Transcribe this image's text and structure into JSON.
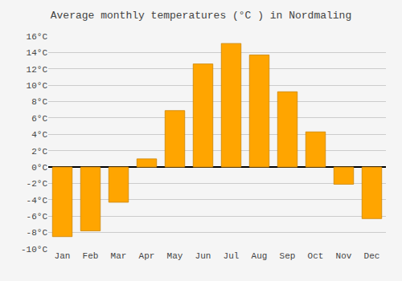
{
  "chart_data": {
    "type": "bar",
    "title": "Average monthly temperatures (°C ) in Nordmaling",
    "categories": [
      "Jan",
      "Feb",
      "Mar",
      "Apr",
      "May",
      "Jun",
      "Jul",
      "Aug",
      "Sep",
      "Oct",
      "Nov",
      "Dec"
    ],
    "values": [
      -8.5,
      -7.8,
      -4.3,
      1.0,
      6.9,
      12.6,
      15.1,
      13.7,
      9.2,
      4.3,
      -2.1,
      -6.3
    ],
    "color": "#FFA500",
    "ylim": [
      -10,
      16
    ],
    "yticks": [
      {
        "value": -10,
        "label": "-10°C"
      },
      {
        "value": -8,
        "label": "-8°C"
      },
      {
        "value": -6,
        "label": "-6°C"
      },
      {
        "value": -4,
        "label": "-4°C"
      },
      {
        "value": -2,
        "label": "-2°C"
      },
      {
        "value": 0,
        "label": "0°C"
      },
      {
        "value": 2,
        "label": "2°C"
      },
      {
        "value": 4,
        "label": "4°C"
      },
      {
        "value": 6,
        "label": "6°C"
      },
      {
        "value": 8,
        "label": "8°C"
      },
      {
        "value": 10,
        "label": "10°C"
      },
      {
        "value": 12,
        "label": "12°C"
      },
      {
        "value": 14,
        "label": "14°C"
      },
      {
        "value": 16,
        "label": "16°C"
      }
    ],
    "grid": true
  }
}
